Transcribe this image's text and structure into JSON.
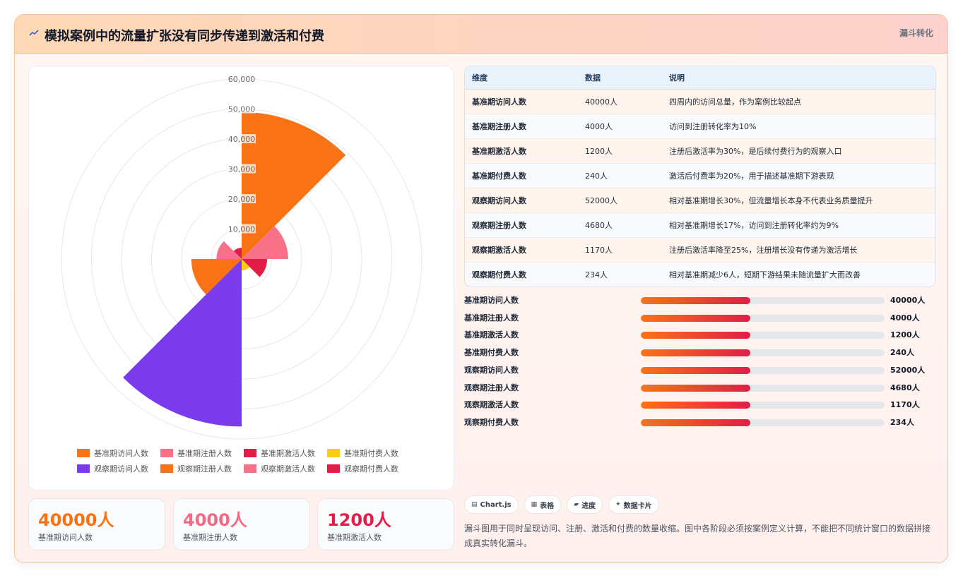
{
  "header": {
    "title": "模拟案例中的流量扩张没有同步传递到激活和付费",
    "tag": "漏斗转化"
  },
  "chart_data": {
    "type": "polarArea",
    "title": "",
    "r_ticks": [
      "60,000",
      "50,000",
      "40,000",
      "30,000",
      "20,000",
      "10,000"
    ],
    "r_max": 60000,
    "categories": [
      "基准期访问人数",
      "基准期注册人数",
      "基准期激活人数",
      "基准期付费人数",
      "观察期访问人数",
      "观察期注册人数",
      "观察期激活人数",
      "观察期付费人数"
    ],
    "values": [
      40000,
      4000,
      1200,
      240,
      52000,
      4680,
      1170,
      234
    ],
    "colors": [
      "#f97316",
      "#f87189",
      "#e11d48",
      "#facc15",
      "#7c3aed",
      "#f97316",
      "#f87189",
      "#e11d48"
    ],
    "legend_position": "bottom"
  },
  "stats": [
    {
      "value": "40000人",
      "label": "基准期访问人数",
      "color": "#f97316"
    },
    {
      "value": "4000人",
      "label": "基准期注册人数",
      "color": "#f06b85"
    },
    {
      "value": "1200人",
      "label": "基准期激活人数",
      "color": "#e11d48"
    }
  ],
  "table": {
    "headers": [
      "维度",
      "数据",
      "说明"
    ],
    "rows": [
      [
        "基准期访问人数",
        "40000人",
        "四周内的访问总量，作为案例比较起点"
      ],
      [
        "基准期注册人数",
        "4000人",
        "访问到注册转化率为10%"
      ],
      [
        "基准期激活人数",
        "1200人",
        "注册后激活率为30%，是后续付费行为的观察入口"
      ],
      [
        "基准期付费人数",
        "240人",
        "激活后付费率为20%，用于描述基准期下游表现"
      ],
      [
        "观察期访问人数",
        "52000人",
        "相对基准期增长30%，但流量增长本身不代表业务质量提升"
      ],
      [
        "观察期注册人数",
        "4680人",
        "相对基准期增长17%，访问到注册转化率约为9%"
      ],
      [
        "观察期激活人数",
        "1170人",
        "注册后激活率降至25%，注册增长没有传递为激活增长"
      ],
      [
        "观察期付费人数",
        "234人",
        "相对基准期减少6人，短期下游结果未随流量扩大而改善"
      ]
    ]
  },
  "bars": [
    {
      "label": "基准期访问人数",
      "value": "40000人",
      "fill": 0.45
    },
    {
      "label": "基准期注册人数",
      "value": "4000人",
      "fill": 0.45
    },
    {
      "label": "基准期激活人数",
      "value": "1200人",
      "fill": 0.45
    },
    {
      "label": "基准期付费人数",
      "value": "240人",
      "fill": 0.45
    },
    {
      "label": "观察期访问人数",
      "value": "52000人",
      "fill": 0.45
    },
    {
      "label": "观察期注册人数",
      "value": "4680人",
      "fill": 0.45
    },
    {
      "label": "观察期激活人数",
      "value": "1170人",
      "fill": 0.45
    },
    {
      "label": "观察期付费人数",
      "value": "234人",
      "fill": 0.45
    }
  ],
  "pills": [
    {
      "icon": "chart-icon",
      "glyph": "▤",
      "label": "Chart.js"
    },
    {
      "icon": "table-icon",
      "glyph": "▦",
      "label": "表格"
    },
    {
      "icon": "progress-icon",
      "glyph": "▰",
      "label": "进度"
    },
    {
      "icon": "sparkle-icon",
      "glyph": "✦",
      "label": "数据卡片"
    }
  ],
  "note": "漏斗图用于同时呈现访问、注册、激活和付费的数量收缩。图中各阶段必须按案例定义计算，不能把不同统计窗口的数据拼接成真实转化漏斗。"
}
